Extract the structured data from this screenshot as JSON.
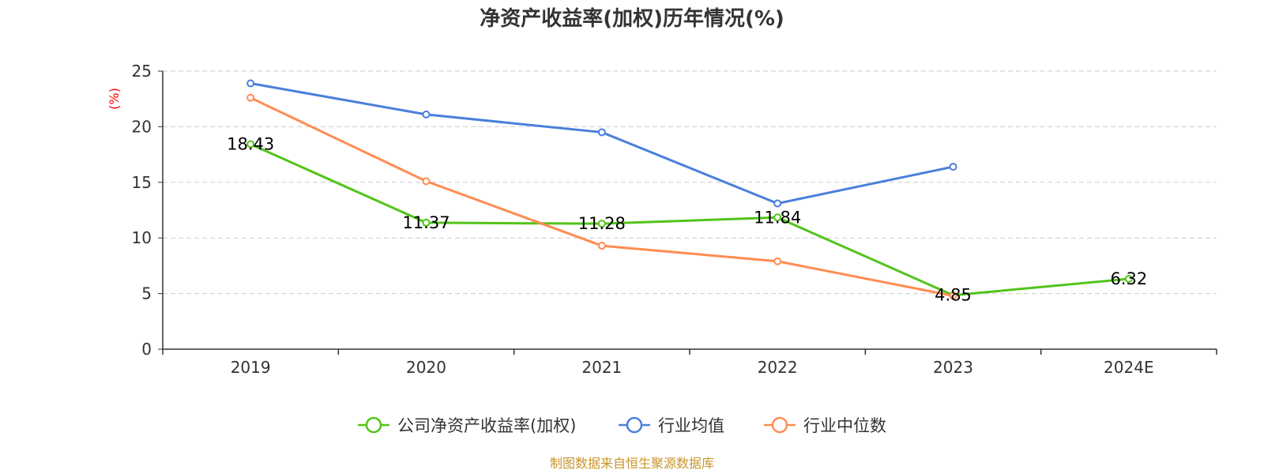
{
  "chart_data": {
    "type": "line",
    "title": "净资产收益率(加权)历年情况(%)",
    "ylabel": "(%)",
    "categories": [
      "2019",
      "2020",
      "2021",
      "2022",
      "2023",
      "2024E"
    ],
    "ylim": [
      0,
      25
    ],
    "yticks": [
      0,
      5,
      10,
      15,
      20,
      25
    ],
    "grid": true,
    "legend_position": "bottom",
    "series": [
      {
        "name": "公司净资产收益率(加权)",
        "color": "#52c41a",
        "values": [
          18.43,
          11.37,
          11.28,
          11.84,
          4.85,
          6.32
        ],
        "labels": [
          "18.43",
          "11.37",
          "11.28",
          "11.84",
          "4.85",
          "6.32"
        ]
      },
      {
        "name": "行业均值",
        "color": "#4a7fdc",
        "values": [
          23.9,
          21.1,
          19.5,
          13.1,
          16.4,
          null
        ]
      },
      {
        "name": "行业中位数",
        "color": "#ff8c52",
        "values": [
          22.6,
          15.1,
          9.3,
          7.9,
          4.8,
          null
        ]
      }
    ]
  },
  "source": "制图数据来自恒生聚源数据库"
}
